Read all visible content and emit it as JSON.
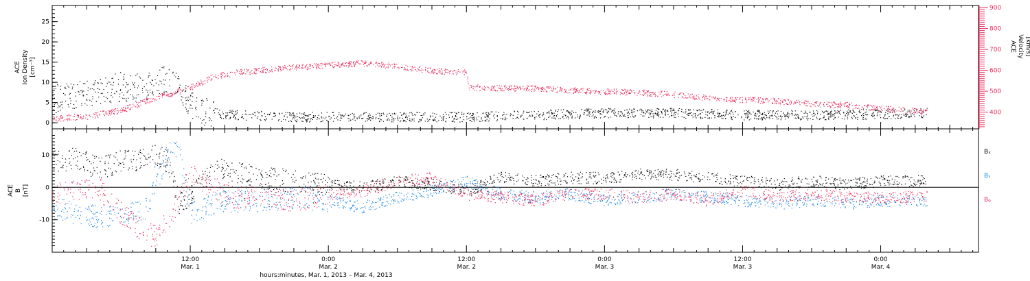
{
  "chart_data": [
    {
      "type": "scatter",
      "ylabel_lines": [
        "ACE",
        "Ion Density",
        "[cm⁻³]"
      ],
      "yticks": [
        "0",
        "5",
        "10",
        "15",
        "20",
        "25"
      ],
      "ylim": [
        -1.5,
        29
      ],
      "y2label_lines": [
        "ACE",
        "Velocity",
        "[km/s]"
      ],
      "y2ticks": [
        "400",
        "500",
        "600",
        "700",
        "800",
        "900"
      ],
      "y2lim": [
        320,
        910
      ],
      "colors": {
        "density": "#000000",
        "velocity": "#e8305f"
      },
      "series": [
        {
          "axis": "left",
          "color": "#000000",
          "x": [
            0,
            2,
            4,
            6,
            8,
            9,
            10,
            11,
            12,
            13,
            14,
            16,
            18,
            20,
            24,
            30,
            36,
            42,
            48,
            54,
            60,
            66,
            72,
            76
          ],
          "y": [
            6,
            7,
            8,
            9,
            9,
            10,
            11,
            8,
            5,
            3,
            2.5,
            2,
            1.8,
            1.5,
            1.5,
            1.5,
            1.5,
            2,
            2.5,
            2.5,
            2,
            2,
            2.2,
            2.5
          ]
        },
        {
          "axis": "right",
          "color": "#e8305f",
          "x": [
            0,
            3,
            6,
            9,
            11,
            12,
            13,
            14,
            16,
            18,
            21,
            24,
            27,
            30,
            33,
            36,
            36.2,
            39,
            42,
            45,
            48,
            51,
            54,
            57,
            60,
            63,
            66,
            69,
            72,
            74,
            76
          ],
          "y": [
            370,
            380,
            410,
            470,
            500,
            520,
            545,
            570,
            590,
            600,
            615,
            625,
            635,
            620,
            600,
            590,
            520,
            515,
            515,
            505,
            500,
            495,
            485,
            470,
            460,
            455,
            440,
            435,
            420,
            410,
            405
          ]
        }
      ]
    },
    {
      "type": "scatter",
      "ylabel_lines": [
        "ACE",
        "B",
        "[nT]"
      ],
      "yticks": [
        "-10",
        "0",
        "10"
      ],
      "ylim": [
        -20,
        18
      ],
      "legend": [
        "Bₓ",
        "Bᵧ",
        "Bᵩ"
      ],
      "legend_colors": [
        "#000000",
        "#1e88e5",
        "#e8305f"
      ],
      "xticks": [
        {
          "time": "12:00",
          "date": "Mar. 1"
        },
        {
          "time": "0:00",
          "date": "Mar. 2"
        },
        {
          "time": "12:00",
          "date": "Mar. 2"
        },
        {
          "time": "0:00",
          "date": "Mar. 3"
        },
        {
          "time": "12:00",
          "date": "Mar. 3"
        },
        {
          "time": "0:00",
          "date": "Mar. 4"
        }
      ],
      "xtick_hours": [
        12,
        24,
        36,
        48,
        60,
        72
      ],
      "xlim_hours": [
        0,
        80.5
      ],
      "xlabel": "hours:minutes, Mar.  1, 2013 – Mar.  4, 2013",
      "series": [
        {
          "color": "#000000",
          "x": [
            0,
            2,
            4,
            6,
            8,
            9,
            10,
            11,
            12,
            14,
            16,
            18,
            21,
            24,
            27,
            30,
            33,
            36,
            39,
            42,
            45,
            48,
            51,
            54,
            57,
            60,
            63,
            66,
            69,
            72,
            74,
            76
          ],
          "y": [
            8,
            9,
            6,
            8,
            9,
            10,
            8,
            -5,
            -3,
            6,
            5,
            3,
            2,
            1,
            0,
            2,
            1,
            -1,
            3,
            2,
            3,
            3,
            4,
            4,
            3,
            2,
            1,
            2,
            1,
            2,
            2,
            2
          ]
        },
        {
          "color": "#1e88e5",
          "x": [
            0,
            2,
            4,
            6,
            8,
            9,
            10,
            11,
            12,
            14,
            16,
            18,
            21,
            24,
            27,
            30,
            33,
            36,
            39,
            42,
            45,
            48,
            51,
            54,
            57,
            60,
            63,
            66,
            69,
            72,
            74,
            76
          ],
          "y": [
            -6,
            -8,
            -9,
            -8,
            -7,
            0,
            10,
            12,
            -8,
            -5,
            -4,
            -4,
            -3,
            -4,
            -6,
            -3,
            -1,
            2,
            -2,
            -3,
            -2,
            -4,
            -3,
            -2,
            -3,
            -4,
            -5,
            -4,
            -5,
            -4,
            -4,
            -4
          ]
        },
        {
          "color": "#e8305f",
          "x": [
            0,
            2,
            4,
            6,
            8,
            9,
            10,
            11,
            12,
            14,
            16,
            18,
            21,
            24,
            27,
            30,
            33,
            36,
            39,
            42,
            45,
            48,
            51,
            54,
            57,
            60,
            63,
            66,
            69,
            72,
            74,
            76
          ],
          "y": [
            -2,
            -1,
            0,
            -8,
            -14,
            -15,
            -10,
            -4,
            4,
            0,
            -3,
            -2,
            -4,
            -2,
            -1,
            2,
            3,
            -2,
            -3,
            -4,
            -2,
            -2,
            -3,
            -2,
            -4,
            -1,
            -3,
            -2,
            -3,
            -3,
            -3,
            -3
          ]
        }
      ]
    }
  ]
}
